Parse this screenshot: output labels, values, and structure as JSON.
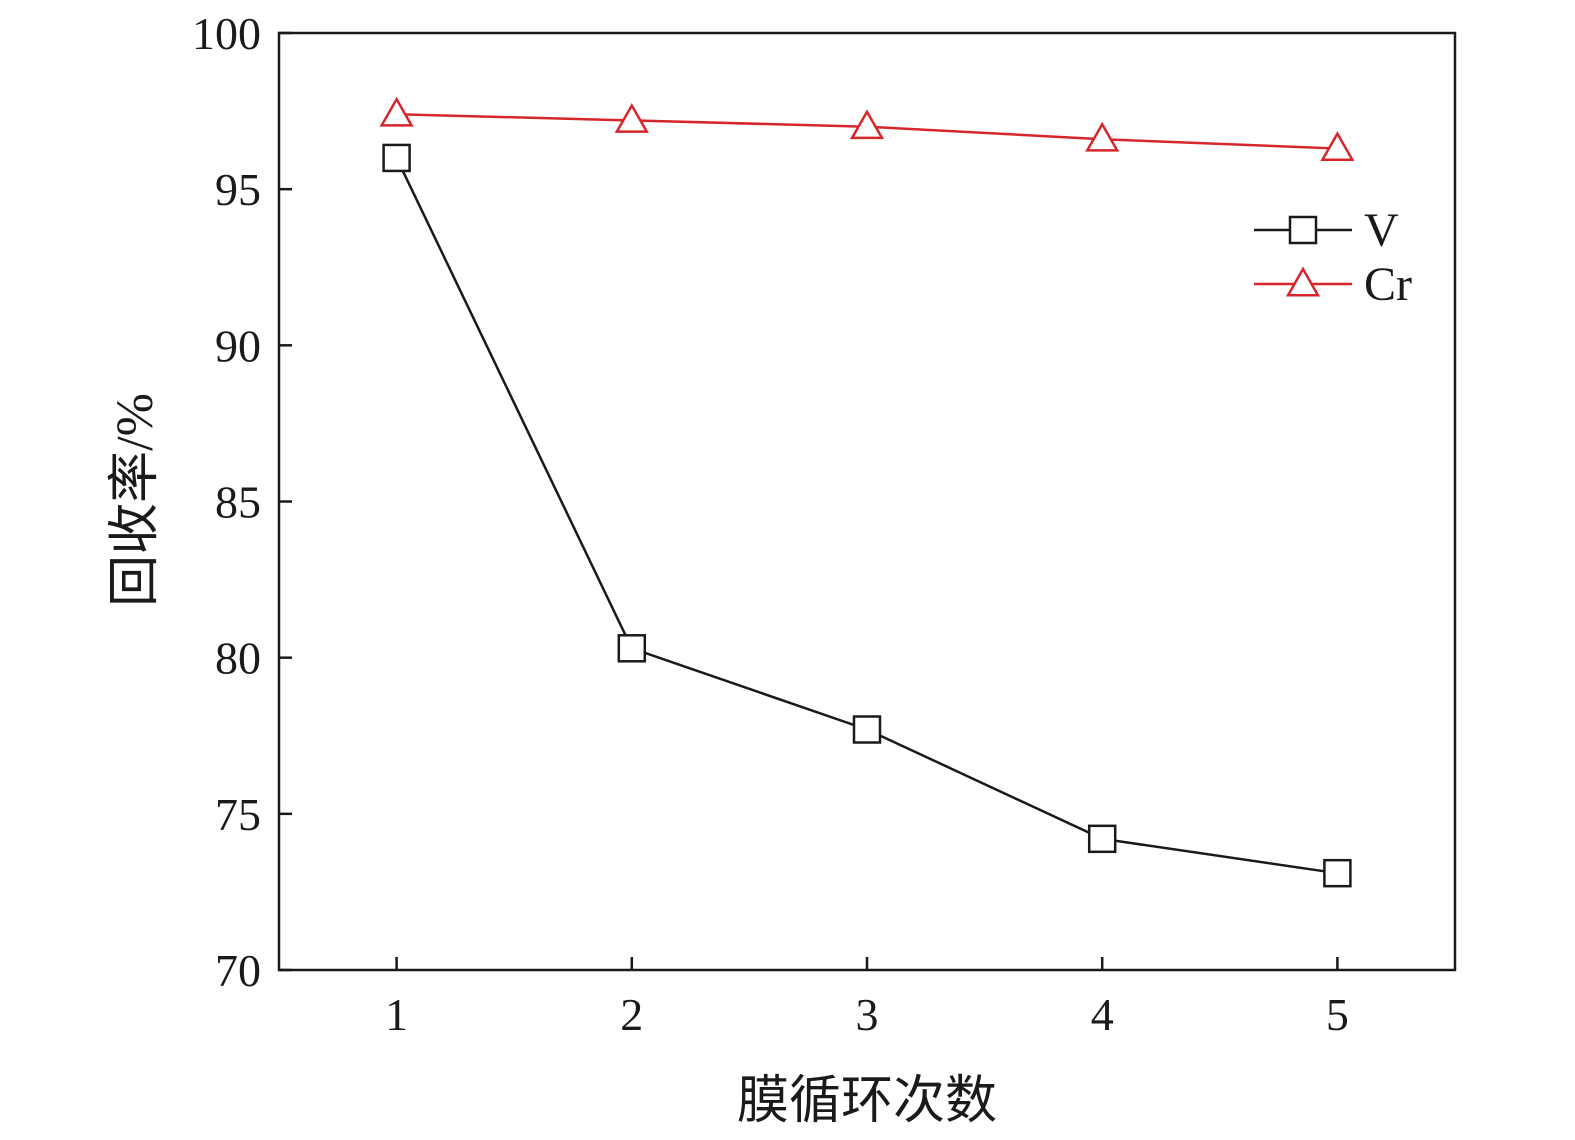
{
  "chart_data": {
    "type": "line",
    "title": "",
    "xlabel": "膜循环次数",
    "ylabel": "回收率/%",
    "x": [
      1,
      2,
      3,
      4,
      5
    ],
    "xlim": [
      0.5,
      5.5
    ],
    "ylim": [
      70,
      100
    ],
    "xticks": [
      1,
      2,
      3,
      4,
      5
    ],
    "yticks": [
      70,
      75,
      80,
      85,
      90,
      95,
      100
    ],
    "grid": false,
    "legend_position": "top-right",
    "series": [
      {
        "name": "V",
        "values": [
          96.0,
          80.3,
          77.7,
          74.2,
          73.1
        ],
        "color": "#1a1a1a",
        "marker": "square"
      },
      {
        "name": "Cr",
        "values": [
          97.4,
          97.2,
          97.0,
          96.6,
          96.3
        ],
        "color": "#d7262b",
        "marker": "triangle"
      }
    ]
  }
}
